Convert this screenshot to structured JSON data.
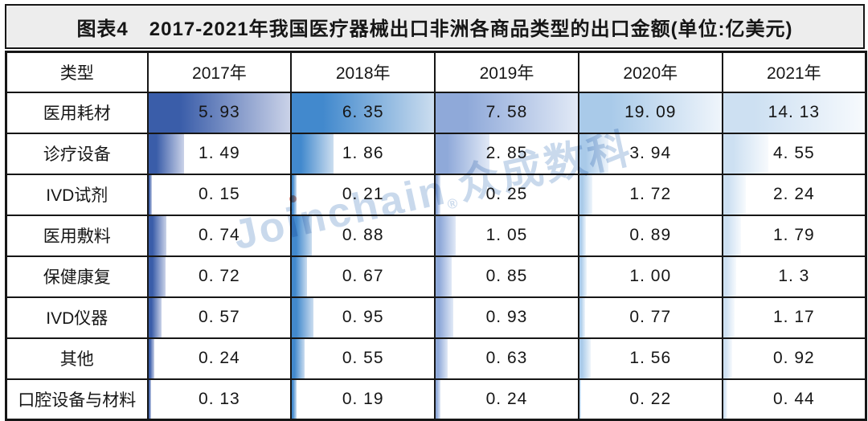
{
  "title": {
    "figure_label": "图表4",
    "text": "2017-2021年我国医疗器械出口非洲各商品类型的出口金额(单位:亿美元)"
  },
  "table": {
    "type_header": "类型",
    "year_headers": [
      "2017年",
      "2018年",
      "2019年",
      "2020年",
      "2021年"
    ],
    "rows": [
      {
        "label": "医用耗材",
        "values": [
          "5.93",
          "6.35",
          "7.58",
          "19.09",
          "14.13"
        ]
      },
      {
        "label": "诊疗设备",
        "values": [
          "1.49",
          "1.86",
          "2.85",
          "3.94",
          "4.55"
        ]
      },
      {
        "label": "IVD试剂",
        "values": [
          "0.15",
          "0.21",
          "0.25",
          "1.72",
          "2.24"
        ]
      },
      {
        "label": "医用敷料",
        "values": [
          "0.74",
          "0.88",
          "1.05",
          "0.89",
          "1.79"
        ]
      },
      {
        "label": "保健康复",
        "values": [
          "0.72",
          "0.67",
          "0.85",
          "1.00",
          "1.3"
        ]
      },
      {
        "label": "IVD仪器",
        "values": [
          "0.57",
          "0.95",
          "0.93",
          "0.77",
          "1.17"
        ]
      },
      {
        "label": "其他",
        "values": [
          "0.24",
          "0.55",
          "0.63",
          "1.56",
          "0.92"
        ]
      },
      {
        "label": "口腔设备与材料",
        "values": [
          "0.13",
          "0.19",
          "0.24",
          "0.22",
          "0.44"
        ]
      }
    ]
  },
  "watermark": {
    "latin": "Joinchain",
    "reg": "®",
    "cjk": "众成数科"
  },
  "colors": {
    "border": "#161616",
    "title_bg": "#ededed",
    "watermark_blue": "#9dbadd",
    "watermark_dot_red": "#d8796b",
    "bar_gradients": [
      {
        "from": "#3a5da9",
        "to": "#cad2e8"
      },
      {
        "from": "#4289cd",
        "to": "#cbddef"
      },
      {
        "from": "#8fa9d9",
        "to": "#e1e9f6"
      },
      {
        "from": "#a9cae9",
        "to": "#eff5fb"
      },
      {
        "from": "#cde0f2",
        "to": "#f7fafd"
      }
    ]
  },
  "chart_data": {
    "type": "table",
    "title": "图表4 2017-2021年我国医疗器械出口非洲各商品类型的出口金额(单位:亿美元)",
    "unit": "亿美元",
    "categories": [
      "医用耗材",
      "诊疗设备",
      "IVD试剂",
      "医用敷料",
      "保健康复",
      "IVD仪器",
      "其他",
      "口腔设备与材料"
    ],
    "series": [
      {
        "name": "2017年",
        "values": [
          5.93,
          1.49,
          0.15,
          0.74,
          0.72,
          0.57,
          0.24,
          0.13
        ]
      },
      {
        "name": "2018年",
        "values": [
          6.35,
          1.86,
          0.21,
          0.88,
          0.67,
          0.95,
          0.55,
          0.19
        ]
      },
      {
        "name": "2019年",
        "values": [
          7.58,
          2.85,
          0.25,
          1.05,
          0.85,
          0.93,
          0.63,
          0.24
        ]
      },
      {
        "name": "2020年",
        "values": [
          19.09,
          3.94,
          1.72,
          0.89,
          1.0,
          0.77,
          1.56,
          0.22
        ]
      },
      {
        "name": "2021年",
        "values": [
          14.13,
          4.55,
          2.24,
          1.79,
          1.3,
          1.17,
          0.92,
          0.44
        ]
      }
    ],
    "cell_bars": "gradient blue data bars inside each cell, length scaled to each year column's maximum value"
  }
}
